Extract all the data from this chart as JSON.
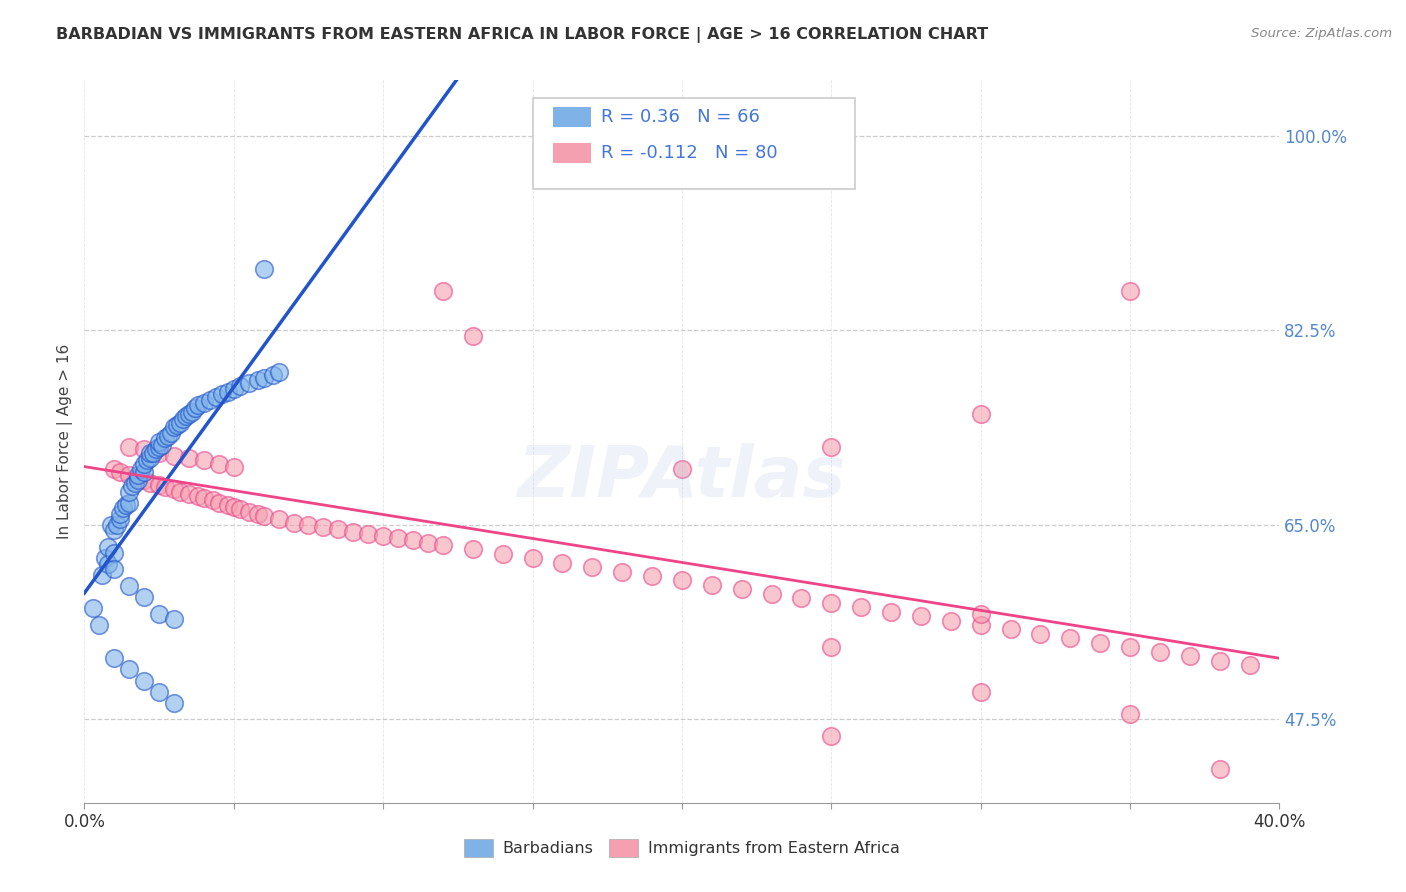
{
  "title": "BARBADIAN VS IMMIGRANTS FROM EASTERN AFRICA IN LABOR FORCE | AGE > 16 CORRELATION CHART",
  "source": "Source: ZipAtlas.com",
  "ylabel": "In Labor Force | Age > 16",
  "xlim": [
    0.0,
    0.4
  ],
  "ylim": [
    0.4,
    1.05
  ],
  "R_blue": 0.36,
  "N_blue": 66,
  "R_pink": -0.112,
  "N_pink": 80,
  "blue_color": "#7FB3E8",
  "pink_color": "#F4A0B0",
  "blue_line_color": "#2255CC",
  "pink_line_color": "#EE4488",
  "dashed_line_color": "#AAAAAA",
  "watermark": "ZIPAtlas",
  "blue_x": [
    0.003,
    0.005,
    0.006,
    0.007,
    0.008,
    0.008,
    0.009,
    0.01,
    0.01,
    0.011,
    0.012,
    0.012,
    0.013,
    0.014,
    0.015,
    0.015,
    0.016,
    0.017,
    0.018,
    0.018,
    0.019,
    0.02,
    0.02,
    0.021,
    0.022,
    0.022,
    0.023,
    0.024,
    0.025,
    0.025,
    0.026,
    0.027,
    0.028,
    0.029,
    0.03,
    0.031,
    0.032,
    0.033,
    0.034,
    0.035,
    0.036,
    0.037,
    0.038,
    0.04,
    0.042,
    0.044,
    0.046,
    0.048,
    0.05,
    0.052,
    0.055,
    0.058,
    0.06,
    0.063,
    0.065,
    0.01,
    0.015,
    0.02,
    0.025,
    0.03,
    0.01,
    0.015,
    0.02,
    0.025,
    0.03,
    0.06
  ],
  "blue_y": [
    0.575,
    0.56,
    0.605,
    0.62,
    0.615,
    0.63,
    0.65,
    0.645,
    0.625,
    0.65,
    0.655,
    0.66,
    0.665,
    0.668,
    0.67,
    0.68,
    0.685,
    0.688,
    0.69,
    0.695,
    0.7,
    0.698,
    0.705,
    0.708,
    0.71,
    0.715,
    0.715,
    0.718,
    0.72,
    0.725,
    0.722,
    0.728,
    0.73,
    0.733,
    0.738,
    0.74,
    0.742,
    0.745,
    0.748,
    0.75,
    0.752,
    0.755,
    0.758,
    0.76,
    0.762,
    0.765,
    0.768,
    0.77,
    0.772,
    0.775,
    0.778,
    0.78,
    0.782,
    0.785,
    0.788,
    0.61,
    0.595,
    0.585,
    0.57,
    0.565,
    0.53,
    0.52,
    0.51,
    0.5,
    0.49,
    0.88
  ],
  "pink_x": [
    0.01,
    0.012,
    0.015,
    0.018,
    0.02,
    0.022,
    0.025,
    0.027,
    0.03,
    0.032,
    0.035,
    0.038,
    0.04,
    0.043,
    0.045,
    0.048,
    0.05,
    0.052,
    0.055,
    0.058,
    0.06,
    0.065,
    0.07,
    0.075,
    0.08,
    0.085,
    0.09,
    0.095,
    0.1,
    0.105,
    0.11,
    0.115,
    0.12,
    0.13,
    0.14,
    0.15,
    0.16,
    0.17,
    0.18,
    0.19,
    0.2,
    0.21,
    0.22,
    0.23,
    0.24,
    0.25,
    0.26,
    0.27,
    0.28,
    0.29,
    0.3,
    0.31,
    0.32,
    0.33,
    0.34,
    0.35,
    0.36,
    0.37,
    0.38,
    0.39,
    0.015,
    0.02,
    0.025,
    0.03,
    0.035,
    0.04,
    0.045,
    0.05,
    0.12,
    0.13,
    0.2,
    0.25,
    0.3,
    0.25,
    0.3,
    0.35,
    0.25,
    0.3,
    0.35,
    0.38
  ],
  "pink_y": [
    0.7,
    0.698,
    0.695,
    0.692,
    0.69,
    0.688,
    0.686,
    0.684,
    0.682,
    0.68,
    0.678,
    0.676,
    0.674,
    0.672,
    0.67,
    0.668,
    0.666,
    0.664,
    0.662,
    0.66,
    0.658,
    0.655,
    0.652,
    0.65,
    0.648,
    0.646,
    0.644,
    0.642,
    0.64,
    0.638,
    0.636,
    0.634,
    0.632,
    0.628,
    0.624,
    0.62,
    0.616,
    0.612,
    0.608,
    0.604,
    0.6,
    0.596,
    0.592,
    0.588,
    0.584,
    0.58,
    0.576,
    0.572,
    0.568,
    0.564,
    0.56,
    0.556,
    0.552,
    0.548,
    0.544,
    0.54,
    0.536,
    0.532,
    0.528,
    0.524,
    0.72,
    0.718,
    0.715,
    0.712,
    0.71,
    0.708,
    0.705,
    0.702,
    0.86,
    0.82,
    0.7,
    0.72,
    0.75,
    0.54,
    0.57,
    0.86,
    0.46,
    0.5,
    0.48,
    0.43
  ]
}
